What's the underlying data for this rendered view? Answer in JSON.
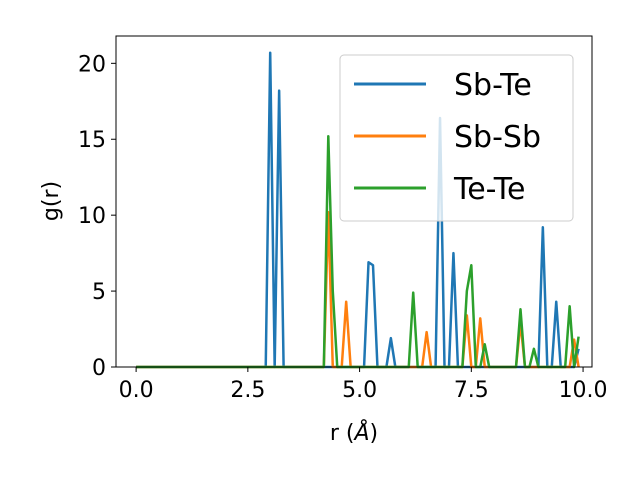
{
  "chart_data": {
    "type": "line",
    "xlabel_prefix": "r (",
    "xlabel_unit": "Å",
    "xlabel_suffix": ")",
    "ylabel": "g(r)",
    "xlim": [
      -0.45,
      10.2
    ],
    "ylim": [
      0,
      21.8
    ],
    "xticks": [
      0.0,
      2.5,
      5.0,
      7.5,
      10.0
    ],
    "xtick_labels": [
      "0.0",
      "2.5",
      "5.0",
      "7.5",
      "10.0"
    ],
    "yticks": [
      0,
      5,
      10,
      15,
      20
    ],
    "ytick_labels": [
      "0",
      "5",
      "10",
      "15",
      "20"
    ],
    "grid": false,
    "legend_position": "top-right",
    "series": [
      {
        "name": "Sb-Te",
        "color": "#1f77b4",
        "x": [
          0.0,
          2.9,
          3.0,
          3.1,
          3.2,
          3.3,
          5.1,
          5.2,
          5.3,
          5.4,
          5.6,
          5.7,
          5.8,
          6.7,
          6.8,
          6.9,
          7.0,
          7.1,
          7.2,
          9.0,
          9.1,
          9.2,
          9.3,
          9.4,
          9.5,
          9.8,
          9.9
        ],
        "y": [
          0,
          0,
          20.7,
          0,
          18.2,
          0,
          0,
          6.9,
          6.7,
          0,
          0,
          1.9,
          0,
          0,
          16.4,
          0,
          0,
          7.5,
          0,
          0,
          9.2,
          0,
          0,
          4.3,
          0,
          0,
          1.2
        ]
      },
      {
        "name": "Sb-Sb",
        "color": "#ff7f0e",
        "x": [
          0.0,
          4.2,
          4.3,
          4.4,
          4.6,
          4.7,
          4.8,
          6.4,
          6.5,
          6.6,
          7.3,
          7.4,
          7.5,
          7.6,
          7.7,
          7.8,
          8.5,
          8.6,
          8.7,
          9.7,
          9.8,
          9.9
        ],
        "y": [
          0,
          0,
          10.2,
          0,
          0,
          4.3,
          0,
          0,
          2.3,
          0,
          0,
          3.4,
          0,
          0,
          3.2,
          0,
          0,
          2.9,
          0,
          0,
          1.8,
          0
        ]
      },
      {
        "name": "Te-Te",
        "color": "#2ca02c",
        "x": [
          0.0,
          4.2,
          4.3,
          4.4,
          4.5,
          6.1,
          6.2,
          6.3,
          7.3,
          7.4,
          7.5,
          7.6,
          7.7,
          7.8,
          7.9,
          8.5,
          8.6,
          8.7,
          8.8,
          8.9,
          9.0,
          9.6,
          9.7,
          9.8,
          9.9
        ],
        "y": [
          0,
          0,
          15.2,
          5.0,
          0,
          0,
          4.9,
          0,
          0,
          5.0,
          6.7,
          0,
          0,
          1.5,
          0,
          0,
          3.8,
          0,
          0,
          1.2,
          0,
          0,
          4.0,
          0,
          2.0
        ]
      }
    ]
  }
}
